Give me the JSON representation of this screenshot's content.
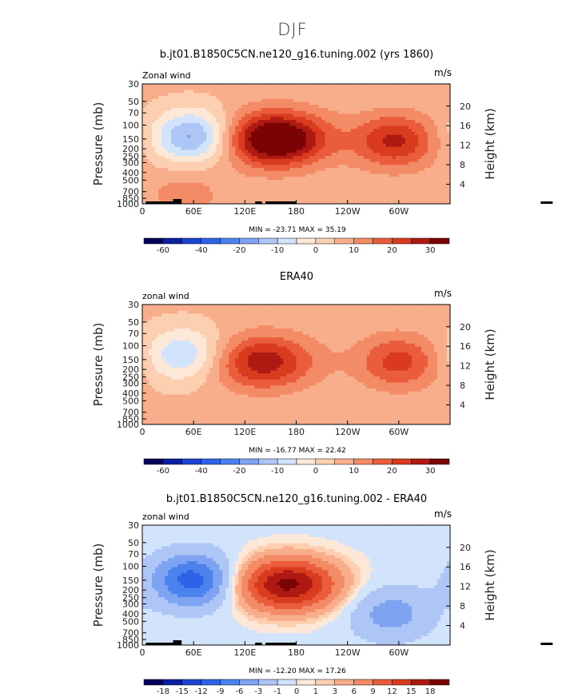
{
  "suptitle": "DJF",
  "panels": [
    {
      "title": "b.jt01.B1850C5CN.ne120_g16.tuning.002 (yrs 1860)",
      "left_label": "Zonal wind",
      "right_label": "m/s",
      "stats": "MIN = -23.71  MAX =  35.19"
    },
    {
      "title": "ERA40",
      "left_label": "zonal wind",
      "right_label": "m/s",
      "stats": "MIN = -16.77  MAX =  22.42"
    },
    {
      "title": "b.jt01.B1850C5CN.ne120_g16.tuning.002 - ERA40",
      "left_label": "zonal wind",
      "right_label": "m/s",
      "stats": "MIN = -12.20  MAX =  17.26"
    }
  ],
  "chart_data": [
    {
      "type": "heatmap",
      "title": "b.jt01.B1850C5CN.ne120_g16.tuning.002 (yrs 1860)",
      "xlabel": "",
      "ylabel": "Pressure (mb)",
      "y2label": "Height (km)",
      "x_ticks": [
        "0",
        "60E",
        "120E",
        "180",
        "120W",
        "60W"
      ],
      "x_tick_values": [
        0,
        60,
        120,
        180,
        240,
        300
      ],
      "xlim": [
        0,
        360
      ],
      "y_ticks": [
        "30",
        "50",
        "70",
        "100",
        "150",
        "200",
        "250",
        "300",
        "400",
        "500",
        "700",
        "850",
        "1000"
      ],
      "y_tick_values": [
        30,
        50,
        70,
        100,
        150,
        200,
        250,
        300,
        400,
        500,
        700,
        850,
        1000
      ],
      "ylim": [
        1000,
        30
      ],
      "y_scale": "log",
      "y2_ticks": [
        "4",
        "8",
        "12",
        "16",
        "20"
      ],
      "units": "m/s",
      "min": -23.71,
      "max": 35.19,
      "features": [
        {
          "lon": 155,
          "p": 150,
          "value": 35.19,
          "kind": "max"
        },
        {
          "lon": 295,
          "p": 160,
          "value": 20
        },
        {
          "lon": 60,
          "p": 140,
          "value": -23.71,
          "kind": "min"
        },
        {
          "lon": 50,
          "p": 750,
          "value": 6
        }
      ],
      "colorbar": {
        "labels": [
          "-60",
          "-40",
          "-20",
          "-10",
          "0",
          "10",
          "20",
          "30"
        ],
        "colors": [
          "#04005a",
          "#0a1f9e",
          "#1d44cf",
          "#2d63e6",
          "#4c82ee",
          "#7ea3f0",
          "#aec6f5",
          "#d2e4fb",
          "#fde8d8",
          "#fccfb0",
          "#f8ad8b",
          "#f38b66",
          "#ea5d3c",
          "#d93b1e",
          "#ae1a12",
          "#7a0404"
        ]
      }
    },
    {
      "type": "heatmap",
      "title": "ERA40",
      "xlabel": "",
      "ylabel": "Pressure (mb)",
      "y2label": "Height (km)",
      "x_ticks": [
        "0",
        "60E",
        "120E",
        "180",
        "120W",
        "60W"
      ],
      "x_tick_values": [
        0,
        60,
        120,
        180,
        240,
        300
      ],
      "xlim": [
        0,
        360
      ],
      "y_ticks": [
        "30",
        "50",
        "70",
        "100",
        "150",
        "200",
        "250",
        "300",
        "400",
        "500",
        "700",
        "850",
        "1000"
      ],
      "y_tick_values": [
        30,
        50,
        70,
        100,
        150,
        200,
        250,
        300,
        400,
        500,
        700,
        850,
        1000
      ],
      "ylim": [
        1000,
        30
      ],
      "y_scale": "log",
      "y2_ticks": [
        "4",
        "8",
        "12",
        "16",
        "20"
      ],
      "units": "m/s",
      "min": -16.77,
      "max": 22.42,
      "features": [
        {
          "lon": 140,
          "p": 160,
          "value": 22.42,
          "kind": "max"
        },
        {
          "lon": 300,
          "p": 160,
          "value": 16
        },
        {
          "lon": 50,
          "p": 130,
          "value": -16.77,
          "kind": "min"
        }
      ],
      "colorbar": {
        "labels": [
          "-60",
          "-40",
          "-20",
          "-10",
          "0",
          "10",
          "20",
          "30"
        ],
        "colors": [
          "#04005a",
          "#0a1f9e",
          "#1d44cf",
          "#2d63e6",
          "#4c82ee",
          "#7ea3f0",
          "#aec6f5",
          "#d2e4fb",
          "#fde8d8",
          "#fccfb0",
          "#f8ad8b",
          "#f38b66",
          "#ea5d3c",
          "#d93b1e",
          "#ae1a12",
          "#7a0404"
        ]
      }
    },
    {
      "type": "heatmap",
      "title": "b.jt01.B1850C5CN.ne120_g16.tuning.002 - ERA40",
      "xlabel": "",
      "ylabel": "Pressure (mb)",
      "y2label": "Height (km)",
      "x_ticks": [
        "0",
        "60E",
        "120E",
        "180",
        "120W",
        "60W"
      ],
      "x_tick_values": [
        0,
        60,
        120,
        180,
        240,
        300
      ],
      "xlim": [
        0,
        360
      ],
      "y_ticks": [
        "30",
        "50",
        "70",
        "100",
        "150",
        "200",
        "250",
        "300",
        "400",
        "500",
        "700",
        "850",
        "1000"
      ],
      "y_tick_values": [
        30,
        50,
        70,
        100,
        150,
        200,
        250,
        300,
        400,
        500,
        700,
        850,
        1000
      ],
      "ylim": [
        1000,
        30
      ],
      "y_scale": "log",
      "y2_ticks": [
        "4",
        "8",
        "12",
        "16",
        "20"
      ],
      "units": "m/s",
      "min": -12.2,
      "max": 17.26,
      "features": [
        {
          "lon": 170,
          "p": 170,
          "value": 17.26,
          "kind": "max"
        },
        {
          "lon": 60,
          "p": 150,
          "value": -12.2,
          "kind": "min"
        },
        {
          "lon": 290,
          "p": 400,
          "value": -6
        }
      ],
      "colorbar": {
        "labels": [
          "-18",
          "-15",
          "-12",
          "-9",
          "-6",
          "-3",
          "-1",
          "0",
          "1",
          "3",
          "6",
          "9",
          "12",
          "15",
          "18"
        ],
        "colors": [
          "#04005a",
          "#0a1f9e",
          "#1d44cf",
          "#2d63e6",
          "#4c82ee",
          "#7ea3f0",
          "#aec6f5",
          "#d2e4fb",
          "#fde8d8",
          "#fccfb0",
          "#f8ad8b",
          "#f38b66",
          "#ea5d3c",
          "#d93b1e",
          "#ae1a12",
          "#7a0404"
        ]
      }
    }
  ]
}
